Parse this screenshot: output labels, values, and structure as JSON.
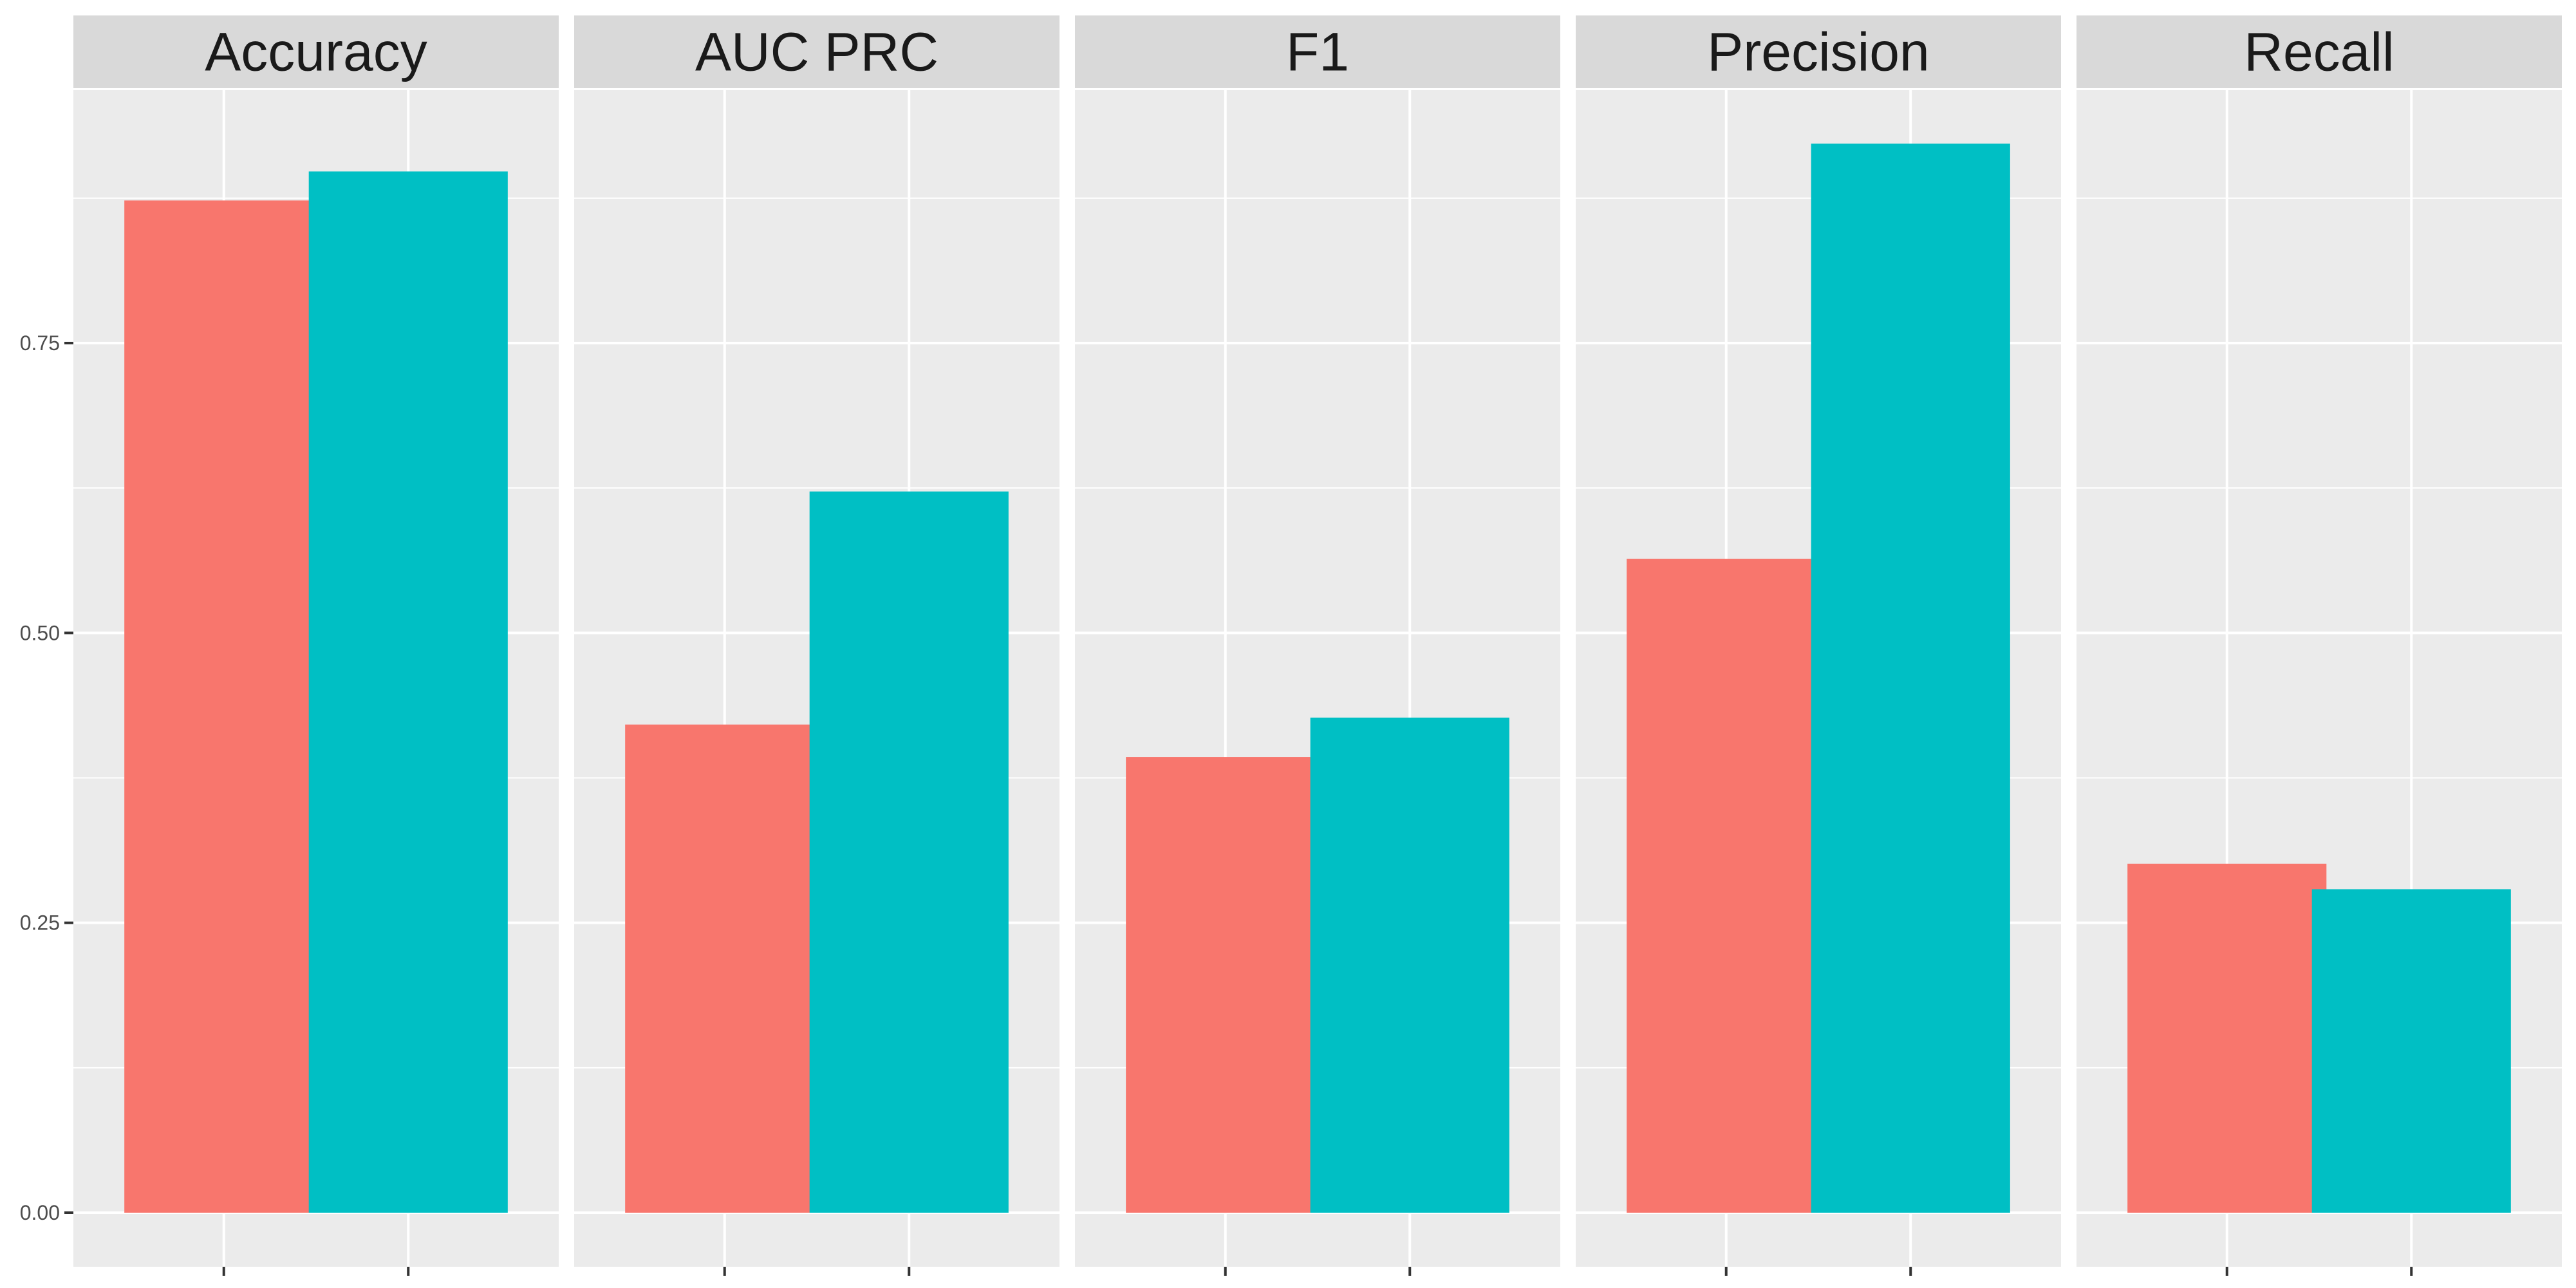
{
  "chart_data": {
    "type": "bar",
    "facets": [
      "Accuracy",
      "AUC PRC",
      "F1",
      "Precision",
      "Recall"
    ],
    "series": [
      {
        "values": [
          0.873,
          0.421,
          0.393,
          0.564,
          0.301
        ]
      },
      {
        "values": [
          0.898,
          0.622,
          0.427,
          0.922,
          0.279
        ]
      }
    ],
    "colors": {
      "series": [
        "#F8766D",
        "#00BFC4"
      ],
      "panel_background": "#EBEBEB",
      "strip_background": "#D9D9D9",
      "grid": "#FFFFFF"
    },
    "ylim": [
      0,
      1.0
    ],
    "yticks": [
      0.0,
      0.25,
      0.5,
      0.75
    ],
    "ytick_labels": [
      "0.00",
      "0.25",
      "0.50",
      "0.75"
    ],
    "grid": true,
    "legend": "none"
  }
}
